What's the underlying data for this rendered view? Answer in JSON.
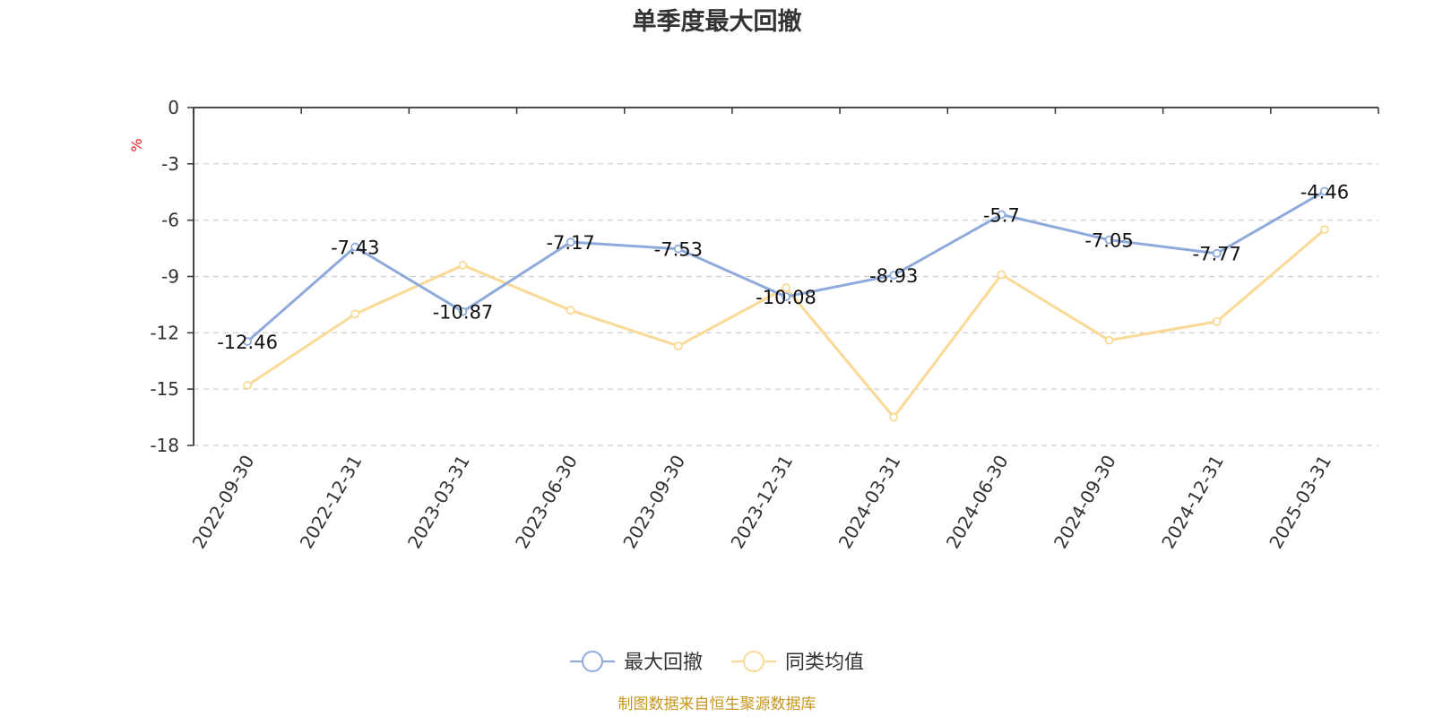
{
  "chart_data": {
    "type": "line",
    "title": "单季度最大回撤",
    "ylabel": "%",
    "ylim": [
      -18,
      0
    ],
    "yticks": [
      0,
      -3,
      -6,
      -9,
      -12,
      -15,
      -18
    ],
    "ytick_labels": [
      "0",
      "-3",
      "-6",
      "-9",
      "-12",
      "-15",
      "-18"
    ],
    "grid": "horizontal-dashed",
    "legend_position": "bottom-center",
    "categories": [
      "2022-09-30",
      "2022-12-31",
      "2023-03-31",
      "2023-06-30",
      "2023-09-30",
      "2023-12-31",
      "2024-03-31",
      "2024-06-30",
      "2024-09-30",
      "2024-12-31",
      "2025-03-31"
    ],
    "series": [
      {
        "name": "最大回撤",
        "color": "#8eaadb",
        "values": [
          -12.46,
          -7.43,
          -10.87,
          -7.17,
          -7.53,
          -10.08,
          -8.93,
          -5.7,
          -7.05,
          -7.77,
          -4.46
        ],
        "labels": [
          "-12.46",
          "-7.43",
          "-10.87",
          "-7.17",
          "-7.53",
          "-10.08",
          "-8.93",
          "-5.7",
          "-7.05",
          "-7.77",
          "-4.46"
        ]
      },
      {
        "name": "同类均值",
        "color": "#fad996",
        "values": [
          -14.8,
          -11.0,
          -8.4,
          -10.8,
          -12.7,
          -9.6,
          -16.5,
          -8.9,
          -12.4,
          -11.4,
          -6.5
        ]
      }
    ],
    "source": "制图数据来自恒生聚源数据库",
    "colors": {
      "axis": "#333333",
      "grid": "#cccccc",
      "ylabel": "#e02020",
      "source": "#c8961e"
    }
  }
}
